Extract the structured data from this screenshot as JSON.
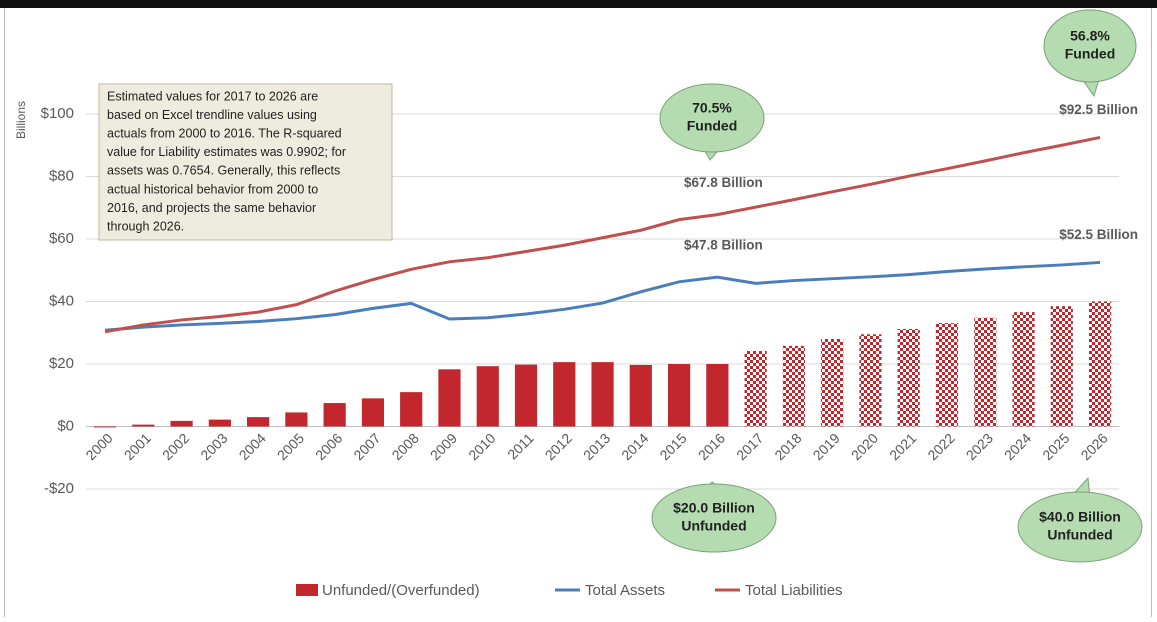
{
  "chart_data": {
    "type": "bar-line",
    "y_axis_label": "Billions",
    "categories": [
      "2000",
      "2001",
      "2002",
      "2003",
      "2004",
      "2005",
      "2006",
      "2007",
      "2008",
      "2009",
      "2010",
      "2011",
      "2012",
      "2013",
      "2014",
      "2015",
      "2016",
      "2017",
      "2018",
      "2019",
      "2020",
      "2021",
      "2022",
      "2023",
      "2024",
      "2025",
      "2026"
    ],
    "ylim": [
      -20,
      100
    ],
    "yticks": [
      {
        "value": -20,
        "label": "-$20"
      },
      {
        "value": 0,
        "label": "$0"
      },
      {
        "value": 20,
        "label": "$20"
      },
      {
        "value": 40,
        "label": "$40"
      },
      {
        "value": 60,
        "label": "$60"
      },
      {
        "value": 80,
        "label": "$80"
      },
      {
        "value": 100,
        "label": "$100"
      }
    ],
    "grid": true,
    "series": [
      {
        "name": "Unfunded/(Overfunded)",
        "type": "bar",
        "color": "#c1272d",
        "values": [
          -0.3,
          0.6,
          1.8,
          2.2,
          3,
          4.5,
          7.5,
          9,
          11,
          18.3,
          19.3,
          19.8,
          20.6,
          20.6,
          19.7,
          20,
          20,
          24.2,
          25.8,
          28,
          29.5,
          31.2,
          33.1,
          34.8,
          36.6,
          38.5,
          40
        ],
        "checkered": [
          false,
          false,
          false,
          false,
          false,
          false,
          false,
          false,
          false,
          false,
          false,
          false,
          false,
          false,
          false,
          false,
          false,
          true,
          true,
          true,
          true,
          true,
          true,
          true,
          true,
          true,
          true
        ]
      },
      {
        "name": "Total Assets",
        "type": "line",
        "color": "#4a7ebb",
        "values": [
          30.8,
          31.8,
          32.5,
          33,
          33.6,
          34.5,
          35.8,
          37.8,
          39.4,
          34.4,
          34.8,
          36,
          37.5,
          39.5,
          43.1,
          46.3,
          47.8,
          45.8,
          46.7,
          47.3,
          47.9,
          48.6,
          49.6,
          50.4,
          51.1,
          51.7,
          52.5
        ],
        "value_labels": [
          null,
          null,
          null,
          null,
          null,
          null,
          null,
          null,
          null,
          null,
          null,
          null,
          null,
          null,
          null,
          null,
          "$47.8  Billion",
          null,
          null,
          null,
          null,
          null,
          null,
          null,
          null,
          null,
          "$52.5  Billion"
        ]
      },
      {
        "name": "Total Liabilities",
        "type": "line",
        "color": "#c0504d",
        "values": [
          30.3,
          32.5,
          34.1,
          35.2,
          36.6,
          39,
          43.3,
          47,
          50.3,
          52.7,
          54,
          56,
          58,
          60.4,
          62.8,
          66.2,
          67.8,
          70.2,
          72.6,
          75.1,
          77.5,
          80.1,
          82.5,
          85,
          87.6,
          90,
          92.5
        ],
        "value_labels": [
          null,
          null,
          null,
          null,
          null,
          null,
          null,
          null,
          null,
          null,
          null,
          null,
          null,
          null,
          null,
          null,
          "$67.8  Billion",
          null,
          null,
          null,
          null,
          null,
          null,
          null,
          null,
          null,
          "$92.5  Billion"
        ]
      }
    ],
    "note": [
      "Estimated values for 2017 to 2026 are",
      "based on Excel trendline values using",
      "actuals from 2000 to 2016.  The R-squared",
      "value for Liability estimates was 0.9902; for",
      "assets was 0.7654.  Generally, this reflects",
      "actual historical behavior from 2000 to",
      "2016,  and projects the same behavior",
      "through 2026."
    ],
    "callouts": [
      {
        "lines": [
          "70.5%",
          "Funded"
        ]
      },
      {
        "lines": [
          "56.8%",
          "Funded"
        ]
      },
      {
        "lines": [
          "$20.0 Billion",
          "Unfunded"
        ]
      },
      {
        "lines": [
          "$40.0 Billion",
          "Unfunded"
        ]
      }
    ],
    "callout_color": "#b5dbb0"
  }
}
